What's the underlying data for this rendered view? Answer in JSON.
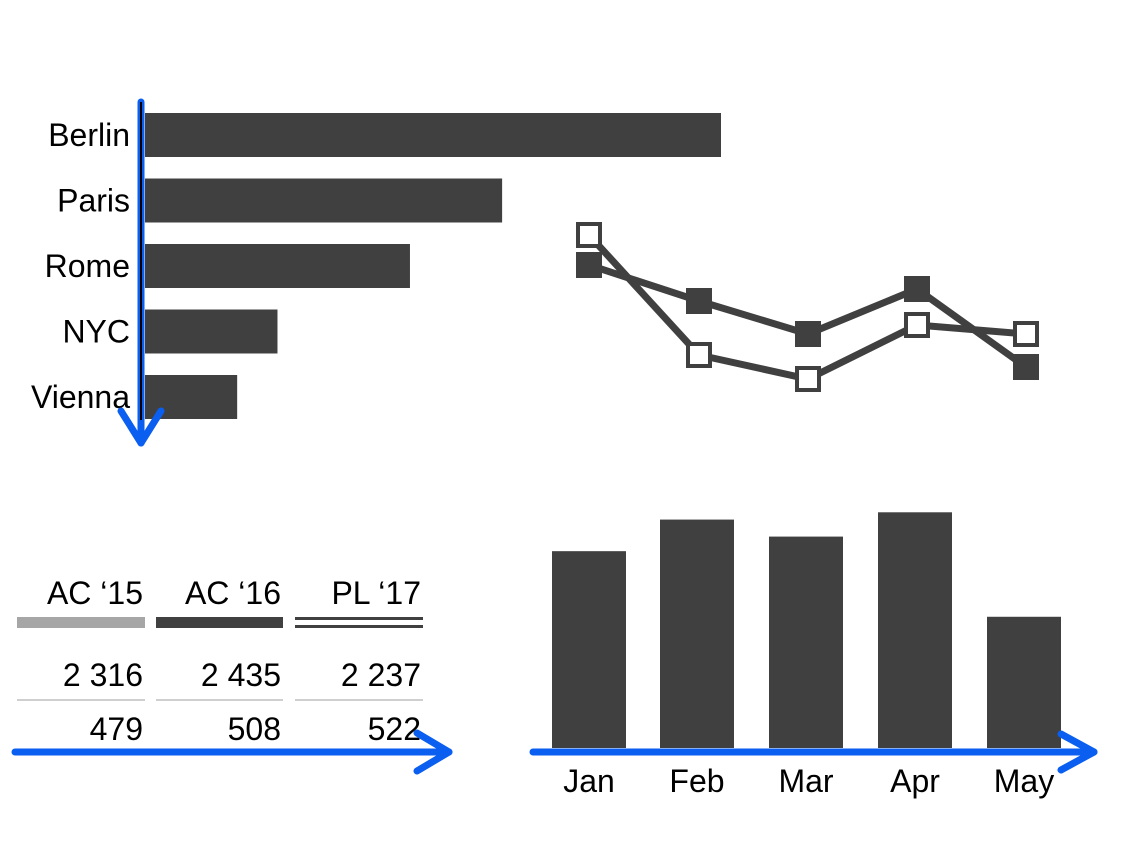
{
  "colors": {
    "bar": "#404040",
    "ac15": "#a6a6a6",
    "ac16": "#404040",
    "pl17": "#404040",
    "arrow": "#0a5ef0",
    "marker_open_fill": "#ffffff",
    "divider": "#bfbfbf"
  },
  "chart_data": [
    {
      "type": "bar",
      "orientation": "horizontal",
      "categories": [
        "Berlin",
        "Paris",
        "Rome",
        "NYC",
        "Vienna"
      ],
      "values": [
        100,
        62,
        46,
        23,
        16
      ],
      "xlim": [
        0,
        100
      ]
    },
    {
      "type": "line",
      "categories": [
        "Jan",
        "Feb",
        "Mar",
        "Apr",
        "May"
      ],
      "series": [
        {
          "style": "filled-square",
          "values": [
            75,
            63,
            52,
            67,
            41
          ]
        },
        {
          "style": "open-square",
          "values": [
            85,
            45,
            37,
            55,
            52
          ]
        }
      ],
      "ylim": [
        0,
        100
      ]
    },
    {
      "type": "table",
      "columns": [
        "AC ‘15",
        "AC ‘16",
        "PL ‘17"
      ],
      "column_styles": [
        "light-solid",
        "dark-solid",
        "double-line"
      ],
      "rows": [
        [
          "2 316",
          "2 435",
          "2 237"
        ],
        [
          "479",
          "508",
          "522"
        ]
      ]
    },
    {
      "type": "bar",
      "orientation": "vertical",
      "categories": [
        "Jan",
        "Feb",
        "Mar",
        "Apr",
        "May"
      ],
      "values": [
        81,
        94,
        87,
        97,
        54
      ],
      "ylim": [
        0,
        100
      ]
    }
  ],
  "arrows": [
    {
      "name": "vertical-down-arrow",
      "direction": "down"
    },
    {
      "name": "table-right-arrow",
      "direction": "right"
    },
    {
      "name": "columns-right-arrow",
      "direction": "right"
    }
  ]
}
